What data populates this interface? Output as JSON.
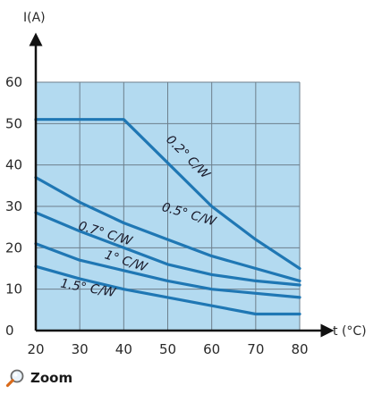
{
  "chart_data": {
    "type": "line",
    "ylabel": "I(A)",
    "xlabel": "t (°C)",
    "xlim": [
      20,
      80
    ],
    "ylim": [
      0,
      60
    ],
    "xticks": [
      20,
      30,
      40,
      50,
      60,
      70,
      80
    ],
    "yticks": [
      0,
      10,
      20,
      30,
      40,
      50,
      60
    ],
    "grid": true,
    "plot_background": "#b3daf0",
    "line_color": "#1f77b4",
    "series": [
      {
        "name": "0.2° C/W",
        "x": [
          20,
          40,
          60,
          70,
          80
        ],
        "y": [
          51,
          51,
          30,
          22,
          15
        ]
      },
      {
        "name": "0.5° C/W",
        "x": [
          20,
          30,
          40,
          50,
          60,
          70,
          80
        ],
        "y": [
          37,
          31,
          26,
          22,
          18,
          15,
          12
        ]
      },
      {
        "name": "0.7° C/W",
        "x": [
          20,
          30,
          40,
          50,
          60,
          70,
          80
        ],
        "y": [
          28.5,
          24,
          20,
          16,
          13.5,
          12,
          11
        ]
      },
      {
        "name": "1° C/W",
        "x": [
          20,
          30,
          40,
          50,
          60,
          70,
          80
        ],
        "y": [
          21,
          17,
          14.5,
          12,
          10,
          9,
          8
        ]
      },
      {
        "name": "1.5° C/W",
        "x": [
          20,
          30,
          40,
          50,
          60,
          70,
          80
        ],
        "y": [
          15.5,
          12.5,
          10,
          8,
          6,
          4,
          4
        ]
      }
    ]
  },
  "zoom": {
    "label": "Zoom",
    "icon": "magnifier-icon"
  }
}
